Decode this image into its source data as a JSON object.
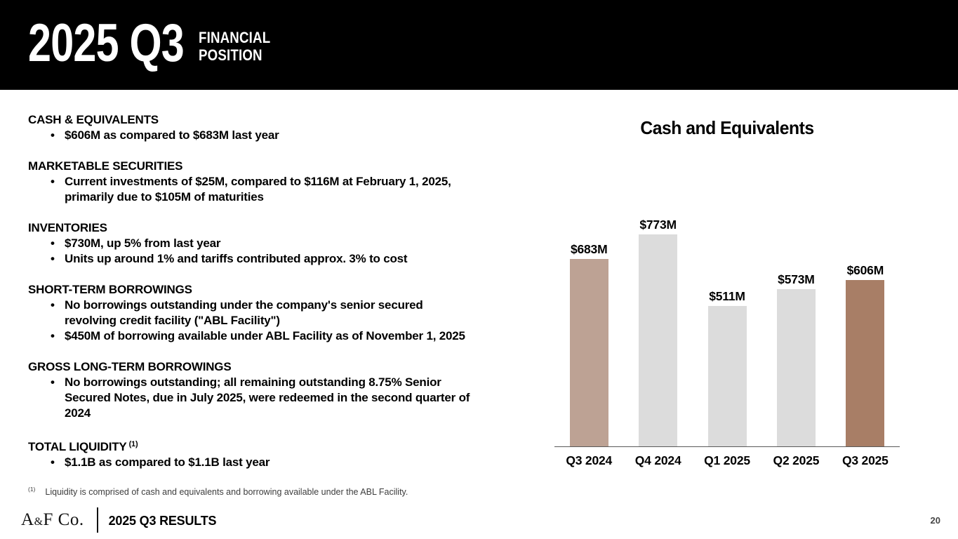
{
  "ui": {
    "bullet": "•"
  },
  "colors": {
    "header_bg": "#000000",
    "accent_tan": "#bda294",
    "accent_brown": "#a87e66",
    "neutral_gray": "#dcdcdc",
    "axis_gray": "#595959"
  },
  "header": {
    "title": "2025 Q3",
    "subtitle_lines": [
      "FINANCIAL",
      "POSITION"
    ]
  },
  "sections": [
    {
      "heading": "CASH & EQUIVALENTS",
      "bullets": [
        [
          "$606M as compared to $683M last year"
        ]
      ]
    },
    {
      "heading": "MARKETABLE SECURITIES",
      "bullets": [
        [
          "Current investments of $25M, compared to $116M at February  1, 2025,",
          "primarily due to $105M of maturities"
        ]
      ]
    },
    {
      "heading": "INVENTORIES",
      "bullets": [
        [
          "$730M, up 5% from last year"
        ],
        [
          "Units up around 1% and tariffs contributed approx. 3% to cost"
        ]
      ]
    },
    {
      "heading": "SHORT-TERM BORROWINGS",
      "bullets": [
        [
          "No borrowings outstanding under the company's senior secured",
          "revolving credit facility (\"ABL Facility\")"
        ],
        [
          "$450M of borrowing available under ABL Facility as of November 1, 2025"
        ]
      ]
    },
    {
      "heading": "GROSS LONG-TERM BORROWINGS",
      "bullets": [
        [
          "No borrowings outstanding; all remaining outstanding 8.75% Senior",
          "Secured Notes, due in July 2025, were redeemed in the second quarter of",
          "2024"
        ]
      ]
    },
    {
      "heading": "TOTAL LIQUIDITY",
      "superscript": "(1)",
      "bullets": [
        [
          "$1.1B as compared to $1.1B last year"
        ]
      ]
    }
  ],
  "footnote": {
    "marker": "(1)",
    "text": "Liquidity is comprised of cash and equivalents and borrowing available under the ABL Facility."
  },
  "footer": {
    "logo": {
      "a": "A",
      "amp": "&",
      "rest": "F Co."
    },
    "label": "2025 Q3 RESULTS",
    "page_number": "20"
  },
  "chart_data": {
    "type": "bar",
    "title": "Cash and Equivalents",
    "categories": [
      "Q3 2024",
      "Q4 2024",
      "Q1 2025",
      "Q2 2025",
      "Q3 2025"
    ],
    "values": [
      683,
      773,
      511,
      573,
      606
    ],
    "value_labels": [
      "$683M",
      "$773M",
      "$511M",
      "$573M",
      "$606M"
    ],
    "bar_colors": [
      "#bda294",
      "#dcdcdc",
      "#dcdcdc",
      "#dcdcdc",
      "#a87e66"
    ],
    "xlabel": "",
    "ylabel": "",
    "ylim": [
      0,
      850
    ],
    "grid": false,
    "legend": false,
    "units": "USD millions"
  }
}
